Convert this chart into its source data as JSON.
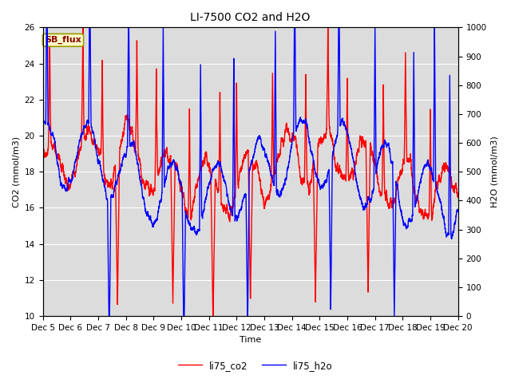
{
  "title": "LI-7500 CO2 and H2O",
  "xlabel": "Time",
  "ylabel_left": "CO2 (mmol/m3)",
  "ylabel_right": "H2O (mmol/m3)",
  "ylim_left": [
    10,
    26
  ],
  "ylim_right": [
    0,
    1000
  ],
  "yticks_left": [
    10,
    12,
    14,
    16,
    18,
    20,
    22,
    24,
    26
  ],
  "yticks_right": [
    0,
    100,
    200,
    300,
    400,
    500,
    600,
    700,
    800,
    900,
    1000
  ],
  "xtick_labels": [
    "Dec 5",
    "Dec 6",
    "Dec 7",
    "Dec 8",
    "Dec 9",
    "Dec 10",
    "Dec 11",
    "Dec 12",
    "Dec 13",
    "Dec 14",
    "Dec 15",
    "Dec 16",
    "Dec 17",
    "Dec 18",
    "Dec 19",
    "Dec 20"
  ],
  "legend_labels": [
    "li75_co2",
    "li75_h2o"
  ],
  "co2_color": "#FF0000",
  "h2o_color": "#0000FF",
  "background_color": "#DCDCDC",
  "annotation_text": "SB_flux",
  "annotation_bg": "#FFFFCC",
  "annotation_border": "#999900",
  "linewidth": 1.0,
  "title_fontsize": 10,
  "label_fontsize": 8,
  "tick_fontsize": 7.5
}
